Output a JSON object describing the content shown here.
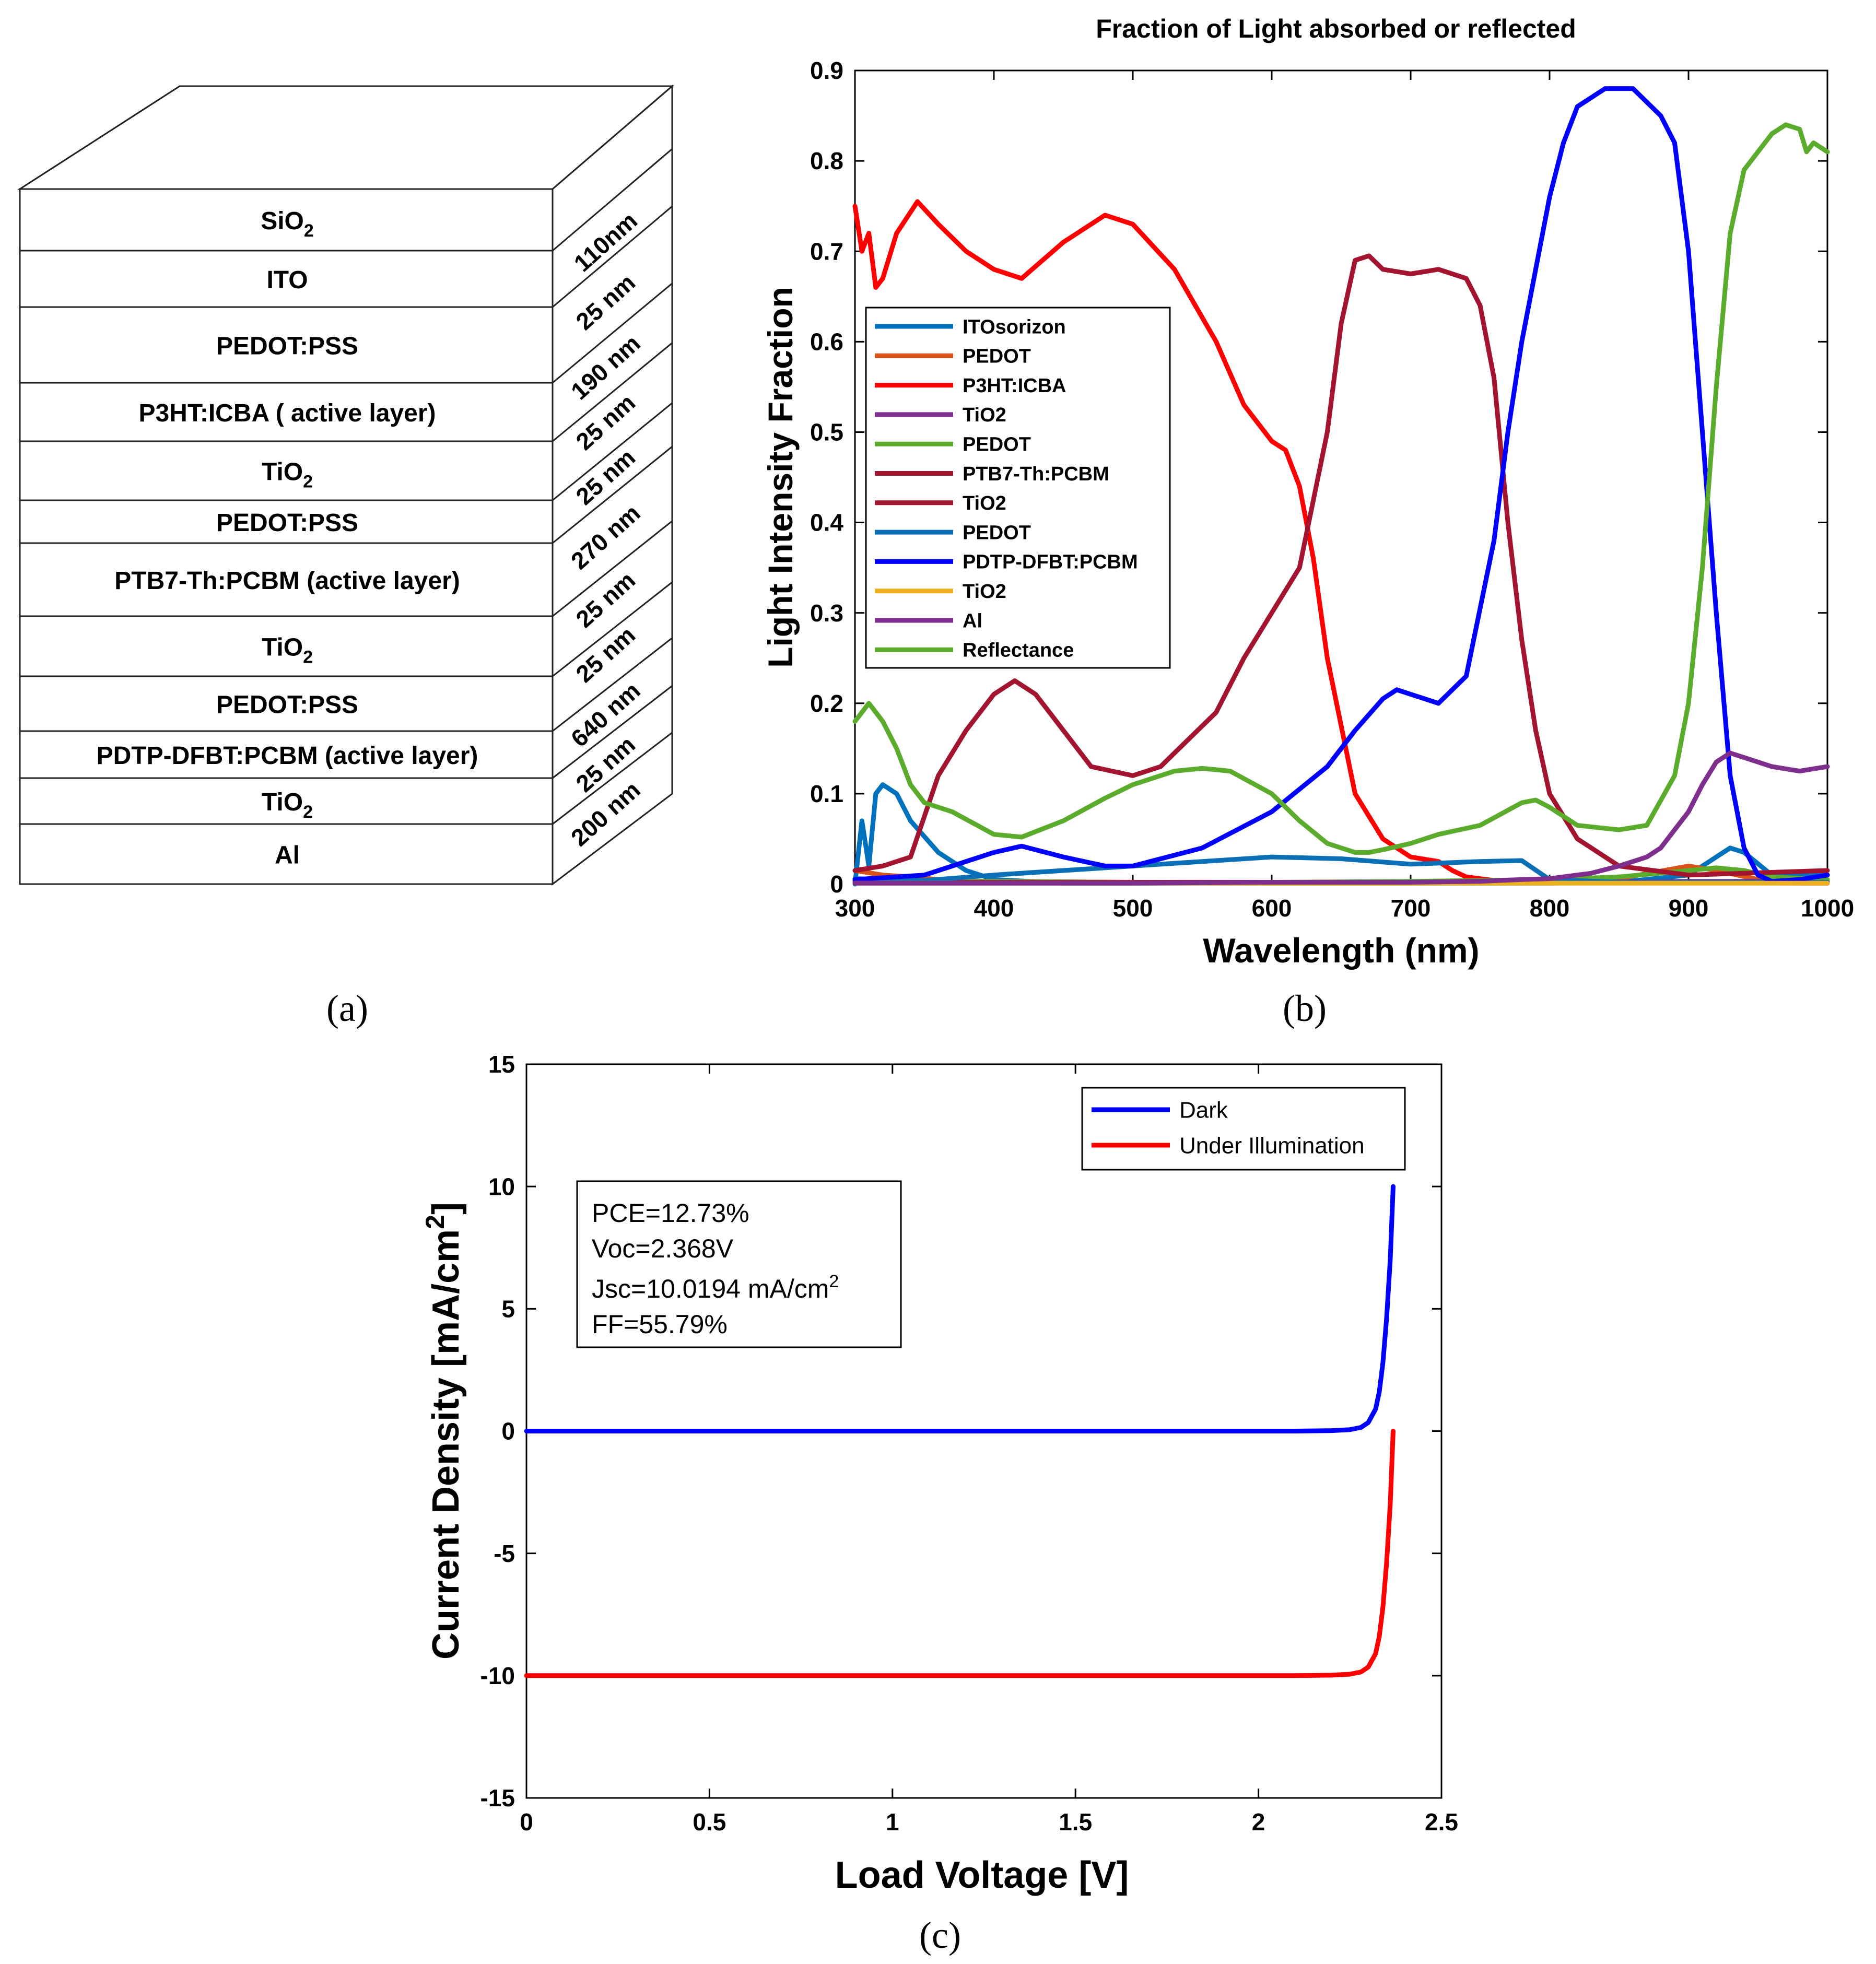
{
  "panel_labels": {
    "a": "(a)",
    "b": "(b)",
    "c": "(c)"
  },
  "colors": {
    "blue1": "#0072BD",
    "orange": "#D95319",
    "red": "#FF0000",
    "purple": "#7E2F8E",
    "green": "#5BAB2C",
    "crimson": "#A2142F",
    "teal": "#0A6FB5",
    "blue": "#0000FF",
    "yellow": "#EDB120",
    "axis": "#000000"
  },
  "stack": {
    "layers": [
      {
        "name": "SiO",
        "sub": "2"
      },
      {
        "name": "ITO",
        "sub": ""
      },
      {
        "name": "PEDOT:PSS",
        "sub": ""
      },
      {
        "name": "P3HT:ICBA ( active layer)",
        "sub": ""
      },
      {
        "name": "TiO",
        "sub": "2"
      },
      {
        "name": "PEDOT:PSS",
        "sub": ""
      },
      {
        "name": "PTB7-Th:PCBM (active layer)",
        "sub": ""
      },
      {
        "name": "TiO",
        "sub": "2"
      },
      {
        "name": "PEDOT:PSS",
        "sub": ""
      },
      {
        "name": "PDTP-DFBT:PCBM (active layer)",
        "sub": ""
      },
      {
        "name": "TiO",
        "sub": "2"
      },
      {
        "name": "Al",
        "sub": ""
      }
    ],
    "thicknesses": [
      "110nm",
      "25  nm",
      "190 nm",
      "25 nm",
      "25 nm",
      "270 nm",
      "25 nm",
      "25  nm",
      "640 nm",
      "25 nm",
      "200 nm"
    ]
  },
  "chart_data": [
    {
      "id": "b",
      "type": "line",
      "title": "Fraction of Light absorbed or reflected",
      "xlabel": "Wavelength (nm)",
      "ylabel": "Light Intensity Fraction",
      "xlim": [
        300,
        1000
      ],
      "ylim": [
        0,
        0.9
      ],
      "xticks": [
        300,
        400,
        500,
        600,
        700,
        800,
        900,
        1000
      ],
      "yticks": [
        0,
        0.1,
        0.2,
        0.3,
        0.4,
        0.5,
        0.6,
        0.7,
        0.8,
        0.9
      ],
      "legend": "top-left (inside)",
      "series": [
        {
          "name": "ITOsorizon",
          "color": "#0072BD",
          "x": [
            300,
            305,
            310,
            315,
            320,
            330,
            340,
            360,
            380,
            400,
            450,
            500,
            550,
            600,
            650,
            700,
            750,
            780,
            800,
            850,
            900,
            920,
            930,
            940,
            960,
            1000
          ],
          "y": [
            0.0,
            0.07,
            0.02,
            0.1,
            0.11,
            0.1,
            0.07,
            0.035,
            0.015,
            0.005,
            0.001,
            0.001,
            0.001,
            0.001,
            0.001,
            0.001,
            0.001,
            0.001,
            0.001,
            0.002,
            0.01,
            0.03,
            0.04,
            0.035,
            0.01,
            0.01
          ]
        },
        {
          "name": "PEDOT",
          "color": "#D95319",
          "x": [
            300,
            320,
            340,
            360,
            400,
            500,
            600,
            700,
            800,
            850,
            900,
            920,
            950,
            1000
          ],
          "y": [
            0.015,
            0.01,
            0.008,
            0.005,
            0.002,
            0.002,
            0.002,
            0.002,
            0.003,
            0.006,
            0.02,
            0.015,
            0.005,
            0.002
          ]
        },
        {
          "name": "P3HT:ICBA",
          "color": "#FF0000",
          "x": [
            300,
            305,
            310,
            315,
            320,
            330,
            345,
            360,
            380,
            400,
            420,
            450,
            480,
            500,
            530,
            560,
            580,
            600,
            610,
            620,
            630,
            640,
            660,
            680,
            700,
            720,
            730,
            740,
            760,
            800,
            1000
          ],
          "y": [
            0.75,
            0.7,
            0.72,
            0.66,
            0.67,
            0.72,
            0.755,
            0.73,
            0.7,
            0.68,
            0.67,
            0.71,
            0.74,
            0.73,
            0.68,
            0.6,
            0.53,
            0.49,
            0.48,
            0.44,
            0.36,
            0.25,
            0.1,
            0.05,
            0.03,
            0.025,
            0.015,
            0.008,
            0.004,
            0.002,
            0.001
          ]
        },
        {
          "name": "TiO2",
          "color": "#7E2F8E",
          "x": [
            300,
            400,
            500,
            600,
            700,
            800,
            900,
            1000
          ],
          "y": [
            0.004,
            0.003,
            0.002,
            0.002,
            0.002,
            0.002,
            0.003,
            0.003
          ]
        },
        {
          "name": "PEDOT",
          "color": "#5BAB2C",
          "x": [
            300,
            400,
            500,
            600,
            700,
            800,
            850,
            900,
            920,
            940,
            960,
            1000
          ],
          "y": [
            0.003,
            0.003,
            0.002,
            0.002,
            0.003,
            0.005,
            0.008,
            0.015,
            0.018,
            0.015,
            0.008,
            0.005
          ]
        },
        {
          "name": "PTB7-Th:PCBM",
          "color": "#A2142F",
          "x": [
            300,
            320,
            340,
            360,
            380,
            400,
            415,
            430,
            450,
            470,
            500,
            520,
            540,
            560,
            580,
            600,
            620,
            640,
            650,
            660,
            670,
            680,
            700,
            720,
            740,
            750,
            760,
            770,
            780,
            790,
            800,
            820,
            850,
            900,
            1000
          ],
          "y": [
            0.015,
            0.02,
            0.03,
            0.12,
            0.17,
            0.21,
            0.225,
            0.21,
            0.17,
            0.13,
            0.12,
            0.13,
            0.16,
            0.19,
            0.25,
            0.3,
            0.35,
            0.5,
            0.62,
            0.69,
            0.695,
            0.68,
            0.675,
            0.68,
            0.67,
            0.64,
            0.56,
            0.4,
            0.27,
            0.17,
            0.1,
            0.05,
            0.02,
            0.01,
            0.015
          ]
        },
        {
          "name": "TiO2",
          "color": "#A2142F",
          "x": [
            300,
            400,
            500,
            600,
            700,
            800,
            900,
            1000
          ],
          "y": [
            0.002,
            0.002,
            0.002,
            0.002,
            0.002,
            0.002,
            0.002,
            0.002
          ]
        },
        {
          "name": "PEDOT",
          "color": "#0A6FB5",
          "x": [
            300,
            350,
            400,
            450,
            500,
            550,
            600,
            650,
            700,
            750,
            780,
            800,
            850,
            900,
            1000
          ],
          "y": [
            0.006,
            0.004,
            0.01,
            0.015,
            0.02,
            0.025,
            0.03,
            0.028,
            0.022,
            0.025,
            0.026,
            0.005,
            0.002,
            0.002,
            0.002
          ]
        },
        {
          "name": "PDTP-DFBT:PCBM",
          "color": "#0000FF",
          "x": [
            300,
            350,
            400,
            420,
            450,
            480,
            500,
            550,
            600,
            640,
            660,
            680,
            690,
            700,
            710,
            720,
            740,
            760,
            770,
            780,
            790,
            800,
            810,
            820,
            840,
            860,
            880,
            890,
            900,
            910,
            920,
            930,
            940,
            950,
            960,
            980,
            1000
          ],
          "y": [
            0.005,
            0.01,
            0.035,
            0.042,
            0.03,
            0.02,
            0.02,
            0.04,
            0.08,
            0.13,
            0.17,
            0.205,
            0.215,
            0.21,
            0.205,
            0.2,
            0.23,
            0.38,
            0.5,
            0.6,
            0.68,
            0.76,
            0.82,
            0.86,
            0.88,
            0.88,
            0.85,
            0.82,
            0.7,
            0.5,
            0.3,
            0.12,
            0.04,
            0.01,
            0.003,
            0.005,
            0.01
          ]
        },
        {
          "name": "TiO2",
          "color": "#EDB120",
          "x": [
            300,
            400,
            500,
            600,
            700,
            800,
            900,
            1000
          ],
          "y": [
            0.001,
            0.001,
            0.001,
            0.001,
            0.001,
            0.001,
            0.001,
            0.001
          ]
        },
        {
          "name": "Al",
          "color": "#7E2F8E",
          "x": [
            300,
            400,
            500,
            600,
            700,
            750,
            780,
            800,
            830,
            850,
            870,
            880,
            890,
            900,
            910,
            920,
            930,
            940,
            960,
            980,
            1000
          ],
          "y": [
            0.001,
            0.001,
            0.001,
            0.002,
            0.002,
            0.003,
            0.005,
            0.006,
            0.012,
            0.02,
            0.03,
            0.04,
            0.06,
            0.08,
            0.11,
            0.135,
            0.145,
            0.14,
            0.13,
            0.125,
            0.13
          ]
        },
        {
          "name": "Reflectance",
          "color": "#5BAB2C",
          "x": [
            300,
            305,
            310,
            320,
            330,
            340,
            350,
            370,
            400,
            420,
            450,
            480,
            500,
            530,
            550,
            570,
            600,
            620,
            640,
            660,
            670,
            680,
            700,
            720,
            750,
            780,
            790,
            800,
            820,
            850,
            870,
            890,
            900,
            910,
            920,
            930,
            940,
            950,
            960,
            970,
            980,
            985,
            990,
            1000
          ],
          "y": [
            0.18,
            0.19,
            0.2,
            0.18,
            0.15,
            0.11,
            0.09,
            0.08,
            0.055,
            0.052,
            0.07,
            0.095,
            0.11,
            0.125,
            0.128,
            0.125,
            0.1,
            0.07,
            0.045,
            0.035,
            0.035,
            0.038,
            0.045,
            0.055,
            0.065,
            0.09,
            0.093,
            0.085,
            0.065,
            0.06,
            0.065,
            0.12,
            0.2,
            0.35,
            0.55,
            0.72,
            0.79,
            0.81,
            0.83,
            0.84,
            0.835,
            0.81,
            0.82,
            0.81
          ]
        }
      ]
    },
    {
      "id": "c",
      "type": "line",
      "title": "",
      "xlabel": "Load Voltage [V]",
      "ylabel": "Current Density [mA/cm",
      "ylabel_sup": "2",
      "ylabel_end": "]",
      "xlim": [
        0,
        2.5
      ],
      "ylim": [
        -15,
        15
      ],
      "xticks": [
        0,
        0.5,
        1,
        1.5,
        2,
        2.5
      ],
      "yticks": [
        -15,
        -10,
        -5,
        0,
        5,
        10,
        15
      ],
      "legend": "top-right (inside)",
      "series": [
        {
          "name": "Dark",
          "color": "#0000FF",
          "x": [
            0,
            2.1,
            2.2,
            2.25,
            2.28,
            2.3,
            2.32,
            2.33,
            2.34,
            2.35,
            2.36,
            2.368
          ],
          "y": [
            0,
            0,
            0.02,
            0.06,
            0.15,
            0.35,
            0.9,
            1.6,
            2.8,
            4.6,
            7.0,
            10.0
          ]
        },
        {
          "name": "Under Illumination",
          "color": "#FF0000",
          "x": [
            0,
            2.1,
            2.2,
            2.25,
            2.28,
            2.3,
            2.32,
            2.33,
            2.34,
            2.35,
            2.36,
            2.368
          ],
          "y": [
            -10,
            -10,
            -9.98,
            -9.94,
            -9.85,
            -9.65,
            -9.1,
            -8.4,
            -7.2,
            -5.4,
            -3.0,
            0
          ]
        }
      ],
      "annotation": {
        "pce": "PCE=12.73%",
        "voc": "Voc=2.368V",
        "jsc": "Jsc=10.0194 mA/cm",
        "jsc_sup": "2",
        "ff": "FF=55.79%"
      }
    }
  ]
}
